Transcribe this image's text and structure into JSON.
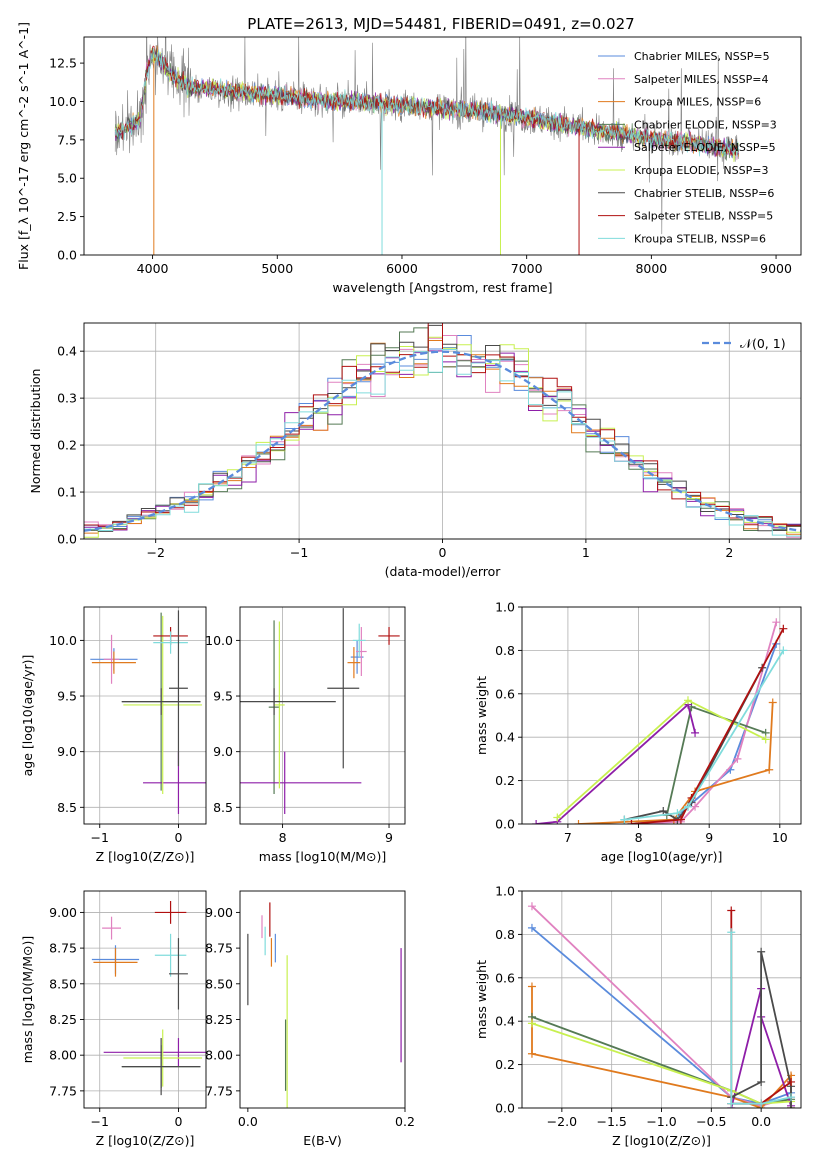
{
  "page_title": "PLATE=2613, MJD=54481, FIBERID=0491, z=0.027",
  "colors": {
    "Chabrier MILES": "#5a8bdc",
    "Salpeter MILES": "#e082c0",
    "Kroupa MILES": "#e07a1e",
    "Chabrier ELODIE": "#557a55",
    "Salpeter ELODIE": "#8e1ea8",
    "Kroupa ELODIE": "#c8f050",
    "Chabrier STELIB": "#4a4a4a",
    "Salpeter STELIB": "#b01010",
    "Kroupa STELIB": "#80dcdc",
    "gaussian": "#5a8bdc"
  },
  "chart_data": [
    {
      "type": "line",
      "title": "PLATE=2613, MJD=54481, FIBERID=0491, z=0.027",
      "xlabel": "wavelength [Angstrom, rest frame]",
      "ylabel": "Flux [f_λ 10^-17 erg cm^-2 s^-1 A^-1]",
      "xlim": [
        3450,
        9200
      ],
      "ylim": [
        0,
        14.2
      ],
      "xticks": [
        4000,
        5000,
        6000,
        7000,
        8000,
        9000
      ],
      "yticks": [
        0.0,
        2.5,
        5.0,
        7.5,
        10.0,
        12.5
      ],
      "legend": "top-right",
      "series": [
        {
          "name": "Chabrier MILES, NSSP=5"
        },
        {
          "name": "Salpeter MILES, NSSP=4"
        },
        {
          "name": "Kroupa MILES, NSSP=6"
        },
        {
          "name": "Chabrier ELODIE, NSSP=3"
        },
        {
          "name": "Salpeter ELODIE, NSSP=5"
        },
        {
          "name": "Kroupa ELODIE, NSSP=3"
        },
        {
          "name": "Chabrier STELIB, NSSP=6"
        },
        {
          "name": "Salpeter STELIB, NSSP=5"
        },
        {
          "name": "Kroupa STELIB, NSSP=6"
        }
      ],
      "continuum": {
        "x": [
          3700,
          3800,
          3900,
          3950,
          4000,
          4050,
          4150,
          4300,
          4500,
          4700,
          5000,
          5200,
          5500,
          5800,
          6100,
          6400,
          6600,
          6800,
          7000,
          7300,
          7600,
          7900,
          8200,
          8500,
          8700
        ],
        "y": [
          8.0,
          8.3,
          8.9,
          11.8,
          13.2,
          12.8,
          11.8,
          10.9,
          10.8,
          10.6,
          10.4,
          10.2,
          10.0,
          9.9,
          9.7,
          9.5,
          9.4,
          9.2,
          8.9,
          8.5,
          8.1,
          7.7,
          7.4,
          7.1,
          6.8
        ]
      }
    },
    {
      "type": "bar",
      "xlabel": "(data-model)/error",
      "ylabel": "Normed distribution",
      "xlim": [
        -2.5,
        2.5
      ],
      "ylim": [
        0,
        0.46
      ],
      "xticks": [
        -2,
        -1,
        0,
        1,
        2
      ],
      "yticks": [
        0.0,
        0.1,
        0.2,
        0.3,
        0.4
      ],
      "grid": true,
      "legend": "top-right",
      "gaussian_label": "𝒩(0, 1)",
      "bin_width": 0.1
    },
    {
      "type": "scatter",
      "xlabel": "Z [log10(Z/Z⊙)]",
      "ylabel": "age  [log10(age/yr)]",
      "xlim": [
        -1.2,
        0.35
      ],
      "ylim": [
        8.35,
        10.3
      ],
      "xticks": [
        -1,
        0
      ],
      "yticks": [
        8.5,
        9.0,
        9.5,
        10.0
      ],
      "grid": true,
      "points": [
        {
          "series": "Chabrier MILES",
          "x": -0.82,
          "xerr": 0.3,
          "y": 9.83,
          "yerr": 0.1
        },
        {
          "series": "Salpeter MILES",
          "x": -0.85,
          "xerr": 0.1,
          "y": 9.83,
          "yerr": 0.22
        },
        {
          "series": "Kroupa MILES",
          "x": -0.82,
          "xerr": 0.28,
          "y": 9.8,
          "yerr": 0.1
        },
        {
          "series": "Chabrier ELODIE",
          "x": -0.22,
          "xerr": 0.5,
          "y": 9.45,
          "yerr": 0.8
        },
        {
          "series": "Salpeter ELODIE",
          "x": 0.0,
          "xerr": 0.45,
          "y": 8.72,
          "yerr": 0.28
        },
        {
          "series": "Kroupa ELODIE",
          "x": -0.2,
          "xerr": 0.5,
          "y": 9.42,
          "yerr": 0.8
        },
        {
          "series": "Chabrier STELIB",
          "x": -0.22,
          "xerr": 0.5,
          "y": 9.45,
          "yerr": 0.12
        },
        {
          "series": "Salpeter STELIB",
          "x": -0.1,
          "xerr": 0.22,
          "y": 10.04,
          "yerr": 0.08
        },
        {
          "series": "Kroupa STELIB",
          "x": -0.1,
          "xerr": 0.22,
          "y": 9.98,
          "yerr": 0.1
        },
        {
          "series": "Chabrier STELIB",
          "x": 0.0,
          "xerr": 0.12,
          "y": 9.57,
          "yerr": 0.7
        }
      ]
    },
    {
      "type": "scatter",
      "xlabel": "mass [log10(M/M⊙)]",
      "xlim": [
        7.6,
        9.15
      ],
      "ylim": [
        8.35,
        10.3
      ],
      "xticks": [
        8,
        9
      ],
      "yticks": [
        8.5,
        9.0,
        9.5,
        10.0
      ],
      "grid": true,
      "points": [
        {
          "series": "Chabrier MILES",
          "x": 8.7,
          "xerr": 0.06,
          "y": 9.85,
          "yerr": 0.15
        },
        {
          "series": "Salpeter MILES",
          "x": 8.74,
          "xerr": 0.05,
          "y": 9.9,
          "yerr": 0.22
        },
        {
          "series": "Kroupa MILES",
          "x": 8.67,
          "xerr": 0.06,
          "y": 9.8,
          "yerr": 0.14
        },
        {
          "series": "Chabrier ELODIE",
          "x": 7.92,
          "xerr": 0.05,
          "y": 9.4,
          "yerr": 0.78
        },
        {
          "series": "Salpeter ELODIE",
          "x": 8.02,
          "xerr": 0.72,
          "y": 8.72,
          "yerr": 0.28
        },
        {
          "series": "Kroupa ELODIE",
          "x": 7.97,
          "xerr": 0.05,
          "y": 9.42,
          "yerr": 0.75
        },
        {
          "series": "Chabrier STELIB",
          "x": 7.92,
          "xerr": 0.58,
          "y": 9.45,
          "yerr": 0.12
        },
        {
          "series": "Salpeter STELIB",
          "x": 9.0,
          "xerr": 0.1,
          "y": 10.04,
          "yerr": 0.08
        },
        {
          "series": "Kroupa STELIB",
          "x": 8.72,
          "xerr": 0.06,
          "y": 10.0,
          "yerr": 0.15
        },
        {
          "series": "Chabrier STELIB",
          "x": 8.57,
          "xerr": 0.15,
          "y": 9.57,
          "yerr": 0.72
        }
      ]
    },
    {
      "type": "line",
      "xlabel": "age  [log10(age/yr)]",
      "ylabel": "mass weight",
      "xlim": [
        6.35,
        10.3
      ],
      "ylim": [
        0,
        1.0
      ],
      "xticks": [
        7,
        8,
        9,
        10
      ],
      "yticks": [
        0.0,
        0.2,
        0.4,
        0.6,
        0.8,
        1.0
      ],
      "grid": true,
      "series": [
        {
          "series": "Chabrier MILES",
          "x": [
            7.9,
            8.5,
            8.7,
            9.3,
            9.95
          ],
          "y": [
            0.0,
            0.02,
            0.08,
            0.25,
            0.83
          ]
        },
        {
          "series": "Salpeter MILES",
          "x": [
            7.9,
            8.6,
            8.8,
            9.4,
            9.95
          ],
          "y": [
            0.0,
            0.01,
            0.08,
            0.3,
            0.93
          ]
        },
        {
          "series": "Kroupa MILES",
          "x": [
            7.15,
            8.5,
            8.8,
            9.85,
            9.9
          ],
          "y": [
            0.0,
            0.02,
            0.15,
            0.25,
            0.56
          ]
        },
        {
          "series": "Chabrier ELODIE",
          "x": [
            8.4,
            8.75,
            9.8
          ],
          "y": [
            0.04,
            0.54,
            0.42
          ]
        },
        {
          "series": "Salpeter ELODIE",
          "x": [
            6.55,
            6.85,
            8.7,
            8.8
          ],
          "y": [
            0.0,
            0.01,
            0.55,
            0.42
          ]
        },
        {
          "series": "Kroupa ELODIE",
          "x": [
            6.85,
            8.7,
            9.8
          ],
          "y": [
            0.03,
            0.57,
            0.39
          ]
        },
        {
          "series": "Chabrier STELIB",
          "x": [
            7.8,
            8.35,
            8.55,
            8.75,
            9.75
          ],
          "y": [
            0.02,
            0.06,
            0.02,
            0.1,
            0.72
          ]
        },
        {
          "series": "Salpeter STELIB",
          "x": [
            7.9,
            8.6,
            8.75,
            10.05
          ],
          "y": [
            0.0,
            0.02,
            0.12,
            0.9
          ]
        },
        {
          "series": "Kroupa STELIB",
          "x": [
            7.8,
            8.55,
            8.7,
            10.05
          ],
          "y": [
            0.02,
            0.05,
            0.08,
            0.8
          ]
        }
      ]
    },
    {
      "type": "scatter",
      "xlabel": "Z [log10(Z/Z⊙)]",
      "ylabel": "mass [log10(M/M⊙)]",
      "xlim": [
        -1.2,
        0.35
      ],
      "ylim": [
        7.63,
        9.15
      ],
      "xticks": [
        -1,
        0
      ],
      "yticks": [
        7.75,
        8.0,
        8.25,
        8.5,
        8.75,
        9.0
      ],
      "grid": true,
      "points": [
        {
          "series": "Chabrier MILES",
          "x": -0.8,
          "xerr": 0.3,
          "y": 8.67,
          "yerr": 0.1
        },
        {
          "series": "Salpeter MILES",
          "x": -0.85,
          "xerr": 0.12,
          "y": 8.89,
          "yerr": 0.08
        },
        {
          "series": "Kroupa MILES",
          "x": -0.8,
          "xerr": 0.28,
          "y": 8.65,
          "yerr": 0.1
        },
        {
          "series": "Chabrier ELODIE",
          "x": -0.22,
          "xerr": 0.5,
          "y": 7.92,
          "yerr": 0.15
        },
        {
          "series": "Salpeter ELODIE",
          "x": 0.0,
          "xerr": 0.95,
          "y": 8.02,
          "yerr": 0.1
        },
        {
          "series": "Kroupa ELODIE",
          "x": -0.2,
          "xerr": 0.5,
          "y": 7.98,
          "yerr": 0.2
        },
        {
          "series": "Chabrier STELIB",
          "x": -0.22,
          "xerr": 0.5,
          "y": 7.92,
          "yerr": 0.2
        },
        {
          "series": "Salpeter STELIB",
          "x": -0.1,
          "xerr": 0.2,
          "y": 9.0,
          "yerr": 0.08
        },
        {
          "series": "Kroupa STELIB",
          "x": -0.1,
          "xerr": 0.2,
          "y": 8.7,
          "yerr": 0.15
        },
        {
          "series": "Chabrier STELIB",
          "x": 0.0,
          "xerr": 0.12,
          "y": 8.57,
          "yerr": 0.25
        }
      ]
    },
    {
      "type": "scatter",
      "xlabel": "E(B-V)",
      "xlim": [
        -0.01,
        0.2
      ],
      "ylim": [
        7.63,
        9.15
      ],
      "xticks": [
        0.0,
        0.2
      ],
      "yticks": [
        7.75,
        8.0,
        8.25,
        8.5,
        8.75,
        9.0
      ],
      "points": [
        {
          "series": "Chabrier MILES",
          "x": 0.035,
          "y": 8.75,
          "yerr": 0.1
        },
        {
          "series": "Salpeter MILES",
          "x": 0.018,
          "y": 8.9,
          "yerr": 0.08
        },
        {
          "series": "Kroupa MILES",
          "x": 0.03,
          "y": 8.72,
          "yerr": 0.1
        },
        {
          "series": "Chabrier ELODIE",
          "x": 0.048,
          "y": 8.0,
          "yerr": 0.25
        },
        {
          "series": "Salpeter ELODIE",
          "x": 0.195,
          "y": 8.35,
          "yerr": 0.4
        },
        {
          "series": "Kroupa ELODIE",
          "x": 0.05,
          "y": 8.1,
          "yerr": 0.6
        },
        {
          "series": "Chabrier STELIB",
          "x": 0.0,
          "y": 8.6,
          "yerr": 0.25
        },
        {
          "series": "Salpeter STELIB",
          "x": 0.028,
          "y": 8.95,
          "yerr": 0.12
        },
        {
          "series": "Kroupa STELIB",
          "x": 0.022,
          "y": 8.8,
          "yerr": 0.1
        }
      ]
    },
    {
      "type": "line",
      "xlabel": "Z [log10(Z/Z⊙)]",
      "ylabel": "mass weight",
      "xlim": [
        -2.4,
        0.4
      ],
      "ylim": [
        0,
        1.0
      ],
      "xticks": [
        -2.0,
        -1.5,
        -1.0,
        -0.5,
        0.0
      ],
      "yticks": [
        0.0,
        0.2,
        0.4,
        0.6,
        0.8,
        1.0
      ],
      "grid": true,
      "series": [
        {
          "series": "Chabrier MILES",
          "x": [
            -2.3,
            -0.3,
            0.0,
            0.3
          ],
          "y": [
            0.83,
            0.05,
            0.02,
            0.07
          ]
        },
        {
          "series": "Salpeter MILES",
          "x": [
            -2.3,
            -0.3,
            0.0,
            0.3
          ],
          "y": [
            0.93,
            0.05,
            0.01,
            0.05
          ]
        },
        {
          "series": "Kroupa MILES",
          "x": [
            -2.3,
            -2.3,
            -0.3,
            0.0,
            0.3,
            0.3
          ],
          "y": [
            0.56,
            0.25,
            0.05,
            0.0,
            0.15,
            0.0
          ]
        },
        {
          "series": "Chabrier ELODIE",
          "x": [
            -2.3,
            -0.3,
            0.0,
            0.3
          ],
          "y": [
            0.42,
            0.08,
            0.02,
            0.04
          ]
        },
        {
          "series": "Salpeter ELODIE",
          "x": [
            -0.3,
            0.0,
            0.0,
            0.3
          ],
          "y": [
            0.0,
            0.55,
            0.42,
            0.01
          ]
        },
        {
          "series": "Kroupa ELODIE",
          "x": [
            -2.3,
            -0.3,
            0.0,
            0.3
          ],
          "y": [
            0.39,
            0.08,
            0.02,
            0.03
          ]
        },
        {
          "series": "Chabrier STELIB",
          "x": [
            -0.3,
            0.0,
            0.0,
            0.3,
            0.3
          ],
          "y": [
            0.05,
            0.12,
            0.72,
            0.1,
            0.0
          ]
        },
        {
          "series": "Salpeter STELIB",
          "x": [
            -0.3,
            -0.3,
            0.0,
            0.3
          ],
          "y": [
            0.91,
            0.02,
            0.02,
            0.12
          ]
        },
        {
          "series": "Kroupa STELIB",
          "x": [
            -0.3,
            -0.3,
            0.0,
            0.3
          ],
          "y": [
            0.81,
            0.02,
            0.02,
            0.05
          ]
        }
      ]
    }
  ]
}
